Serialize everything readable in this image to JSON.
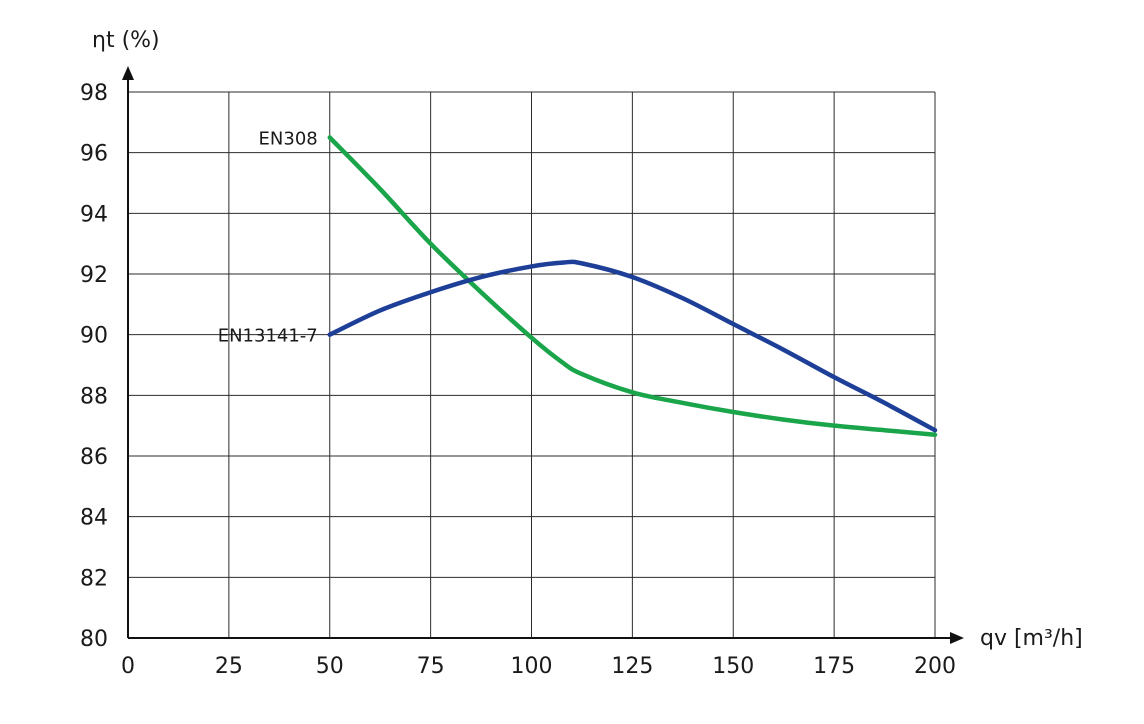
{
  "chart_data": {
    "type": "line",
    "ylabel": "ηt (%)",
    "xlabel": "qv [m³/h]",
    "xlim": [
      0,
      200
    ],
    "ylim": [
      80,
      98
    ],
    "x_ticks": [
      0,
      25,
      50,
      75,
      100,
      125,
      150,
      175,
      200
    ],
    "y_ticks": [
      80,
      82,
      84,
      86,
      88,
      90,
      92,
      94,
      96,
      98
    ],
    "grid": true,
    "series": [
      {
        "name": "EN308",
        "color": "#1aa54b",
        "points": [
          [
            50,
            96.5
          ],
          [
            62.5,
            94.8
          ],
          [
            75,
            93.0
          ],
          [
            87.5,
            91.4
          ],
          [
            100,
            89.9
          ],
          [
            107.5,
            89.1
          ],
          [
            112.5,
            88.7
          ],
          [
            125,
            88.1
          ],
          [
            137.5,
            87.75
          ],
          [
            150,
            87.45
          ],
          [
            162.5,
            87.2
          ],
          [
            175,
            87.0
          ],
          [
            187.5,
            86.85
          ],
          [
            200,
            86.7
          ]
        ]
      },
      {
        "name": "EN13141-7",
        "color": "#1e3f97",
        "points": [
          [
            50,
            90.0
          ],
          [
            62.5,
            90.8
          ],
          [
            75,
            91.4
          ],
          [
            87.5,
            91.9
          ],
          [
            100,
            92.25
          ],
          [
            108,
            92.38
          ],
          [
            112.5,
            92.35
          ],
          [
            125,
            91.9
          ],
          [
            137.5,
            91.2
          ],
          [
            150,
            90.35
          ],
          [
            162.5,
            89.5
          ],
          [
            175,
            88.6
          ],
          [
            187.5,
            87.75
          ],
          [
            200,
            86.85
          ]
        ]
      }
    ]
  }
}
